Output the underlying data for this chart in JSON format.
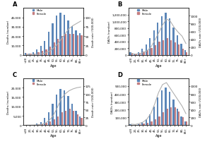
{
  "age_labels": [
    "<20",
    "20-",
    "25-",
    "30-",
    "35-",
    "40-",
    "45-",
    "50-",
    "55-",
    "60-",
    "65-",
    "70-",
    "75-",
    "80-",
    "85+"
  ],
  "panel_A": {
    "title": "A",
    "ylabel_left": "Deaths (number)",
    "ylabel_right": "Death rate (/100,000)",
    "male_bars": [
      2000,
      1500,
      3000,
      5500,
      9500,
      15000,
      25000,
      34000,
      42000,
      45000,
      43000,
      37000,
      31000,
      26000,
      23000
    ],
    "female_bars": [
      1500,
      1000,
      1500,
      2500,
      4000,
      6000,
      9000,
      13000,
      17000,
      20000,
      22000,
      22000,
      22000,
      21000,
      21000
    ],
    "rate_line": [
      0.5,
      0.5,
      1,
      1.5,
      3,
      5,
      10,
      18,
      28,
      42,
      56,
      70,
      78,
      84,
      90
    ],
    "ylim_left": [
      0,
      50000
    ],
    "ylim_right": [
      0,
      125
    ],
    "yticks_left": [
      0,
      10000,
      20000,
      30000,
      40000
    ],
    "ytick_labels_left": [
      "0",
      "10,000",
      "20,000",
      "30,000",
      "40,000"
    ],
    "yticks_right": [
      0,
      25,
      50,
      75,
      100
    ]
  },
  "panel_B": {
    "title": "B",
    "ylabel_left": "DALYs (number)",
    "ylabel_right": "DALYs rate (/100,000)",
    "male_bars": [
      80000,
      40000,
      80000,
      180000,
      320000,
      500000,
      740000,
      960000,
      1150000,
      1260000,
      1100000,
      820000,
      580000,
      330000,
      140000
    ],
    "female_bars": [
      65000,
      30000,
      55000,
      90000,
      150000,
      210000,
      290000,
      400000,
      440000,
      490000,
      440000,
      370000,
      300000,
      190000,
      85000
    ],
    "rate_line": [
      40,
      18,
      32,
      58,
      100,
      195,
      370,
      560,
      760,
      920,
      860,
      700,
      580,
      480,
      290
    ],
    "ylim_left": [
      0,
      1400000
    ],
    "ylim_right": [
      0,
      1200
    ],
    "yticks_left": [
      0,
      200000,
      400000,
      600000,
      800000,
      1000000,
      1200000
    ],
    "ytick_labels_left": [
      "0",
      "200,000",
      "400,000",
      "600,000",
      "800,000",
      "1,000,000",
      "1,200,000"
    ],
    "yticks_right": [
      0,
      200,
      400,
      600,
      800,
      1000
    ]
  },
  "panel_C": {
    "title": "C",
    "ylabel_left": "Deaths (number)",
    "ylabel_right": "Death rate (/100,000)",
    "male_bars": [
      100,
      100,
      300,
      800,
      1800,
      3800,
      6800,
      11500,
      16500,
      19500,
      18500,
      15500,
      11500,
      7500,
      4500
    ],
    "female_bars": [
      100,
      80,
      180,
      350,
      650,
      1100,
      1900,
      3300,
      4800,
      6800,
      7800,
      8800,
      7600,
      5800,
      3800
    ],
    "rate_line": [
      0.2,
      0.2,
      0.5,
      1.2,
      3,
      7,
      16,
      32,
      56,
      85,
      100,
      110,
      116,
      120,
      122
    ],
    "ylim_left": [
      0,
      25000
    ],
    "ylim_right": [
      0,
      150
    ],
    "yticks_left": [
      0,
      5000,
      10000,
      15000,
      20000
    ],
    "ytick_labels_left": [
      "0",
      "5,000",
      "10,000",
      "15,000",
      "20,000"
    ],
    "yticks_right": [
      0,
      25,
      50,
      75,
      100,
      125
    ]
  },
  "panel_D": {
    "title": "D",
    "ylabel_left": "DALYs (number)",
    "ylabel_right": "DALYs rate (/100,000)",
    "male_bars": [
      8000,
      6000,
      16000,
      38000,
      72000,
      135000,
      235000,
      355000,
      445000,
      485000,
      425000,
      325000,
      215000,
      115000,
      50000
    ],
    "female_bars": [
      7000,
      4500,
      9000,
      17000,
      28000,
      48000,
      78000,
      115000,
      165000,
      215000,
      225000,
      225000,
      175000,
      105000,
      48000
    ],
    "rate_line": [
      28,
      18,
      42,
      78,
      155,
      295,
      545,
      840,
      1040,
      1090,
      940,
      790,
      640,
      490,
      295
    ],
    "ylim_left": [
      0,
      600000
    ],
    "ylim_right": [
      0,
      1200
    ],
    "yticks_left": [
      0,
      100000,
      200000,
      300000,
      400000,
      500000
    ],
    "ytick_labels_left": [
      "0",
      "100,000",
      "200,000",
      "300,000",
      "400,000",
      "500,000"
    ],
    "yticks_right": [
      0,
      200,
      400,
      600,
      800,
      1000
    ]
  },
  "male_color": "#5b86b8",
  "female_color": "#c47e80",
  "line_color": "#b0b0b0",
  "bg_color": "#ffffff",
  "bar_width": 0.42
}
